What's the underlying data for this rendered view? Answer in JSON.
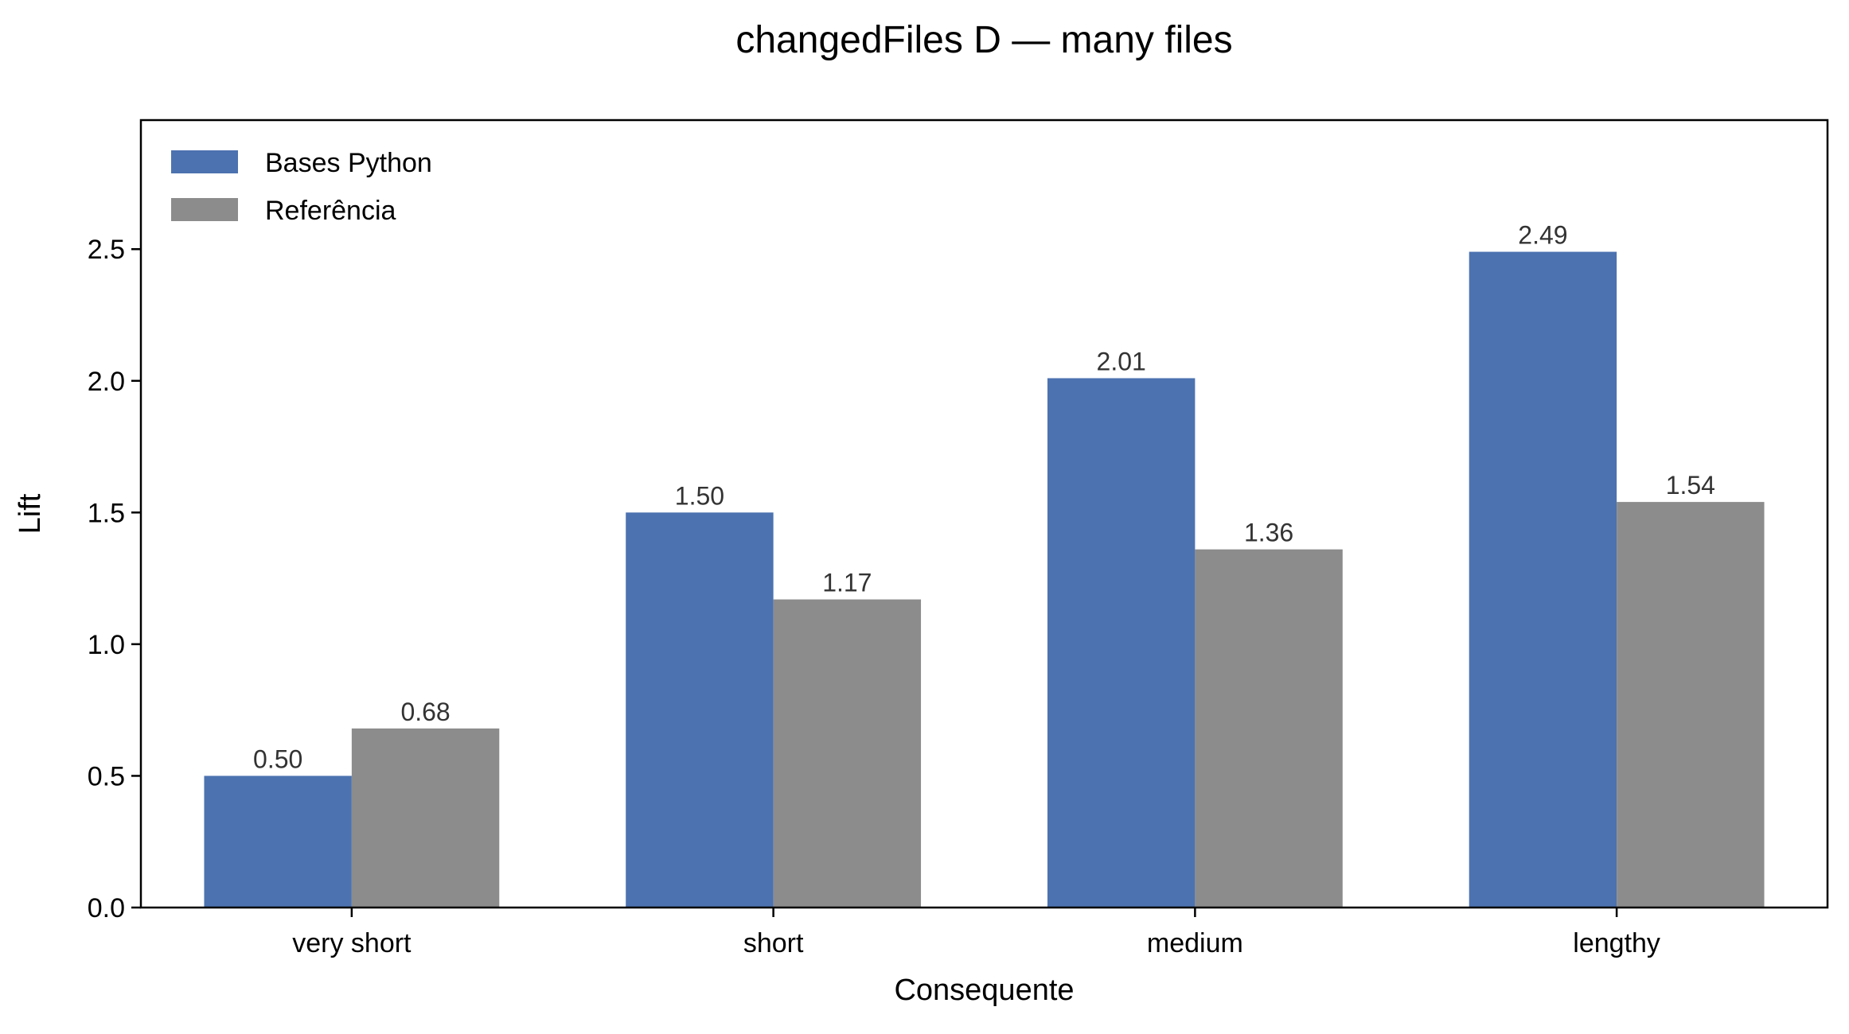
{
  "chart_data": {
    "type": "bar",
    "title": "changedFiles D — many files",
    "xlabel": "Consequente",
    "ylabel": "Lift",
    "categories": [
      "very short",
      "short",
      "medium",
      "lengthy"
    ],
    "series": [
      {
        "name": "Bases Python",
        "values": [
          0.5,
          1.5,
          2.01,
          2.49
        ],
        "color": "#4c72b0"
      },
      {
        "name": "Referência",
        "values": [
          0.68,
          1.17,
          1.36,
          1.54
        ],
        "color": "#8c8c8c"
      }
    ],
    "value_labels": [
      [
        "0.50",
        "1.50",
        "2.01",
        "2.49"
      ],
      [
        "0.68",
        "1.17",
        "1.36",
        "1.54"
      ]
    ],
    "yticks": [
      0.0,
      0.5,
      1.0,
      1.5,
      2.0,
      2.5
    ],
    "ytick_labels": [
      "0.0",
      "0.5",
      "1.0",
      "1.5",
      "2.0",
      "2.5"
    ],
    "ylim": [
      0,
      2.99
    ],
    "grid": false,
    "legend_position": "top-left"
  }
}
